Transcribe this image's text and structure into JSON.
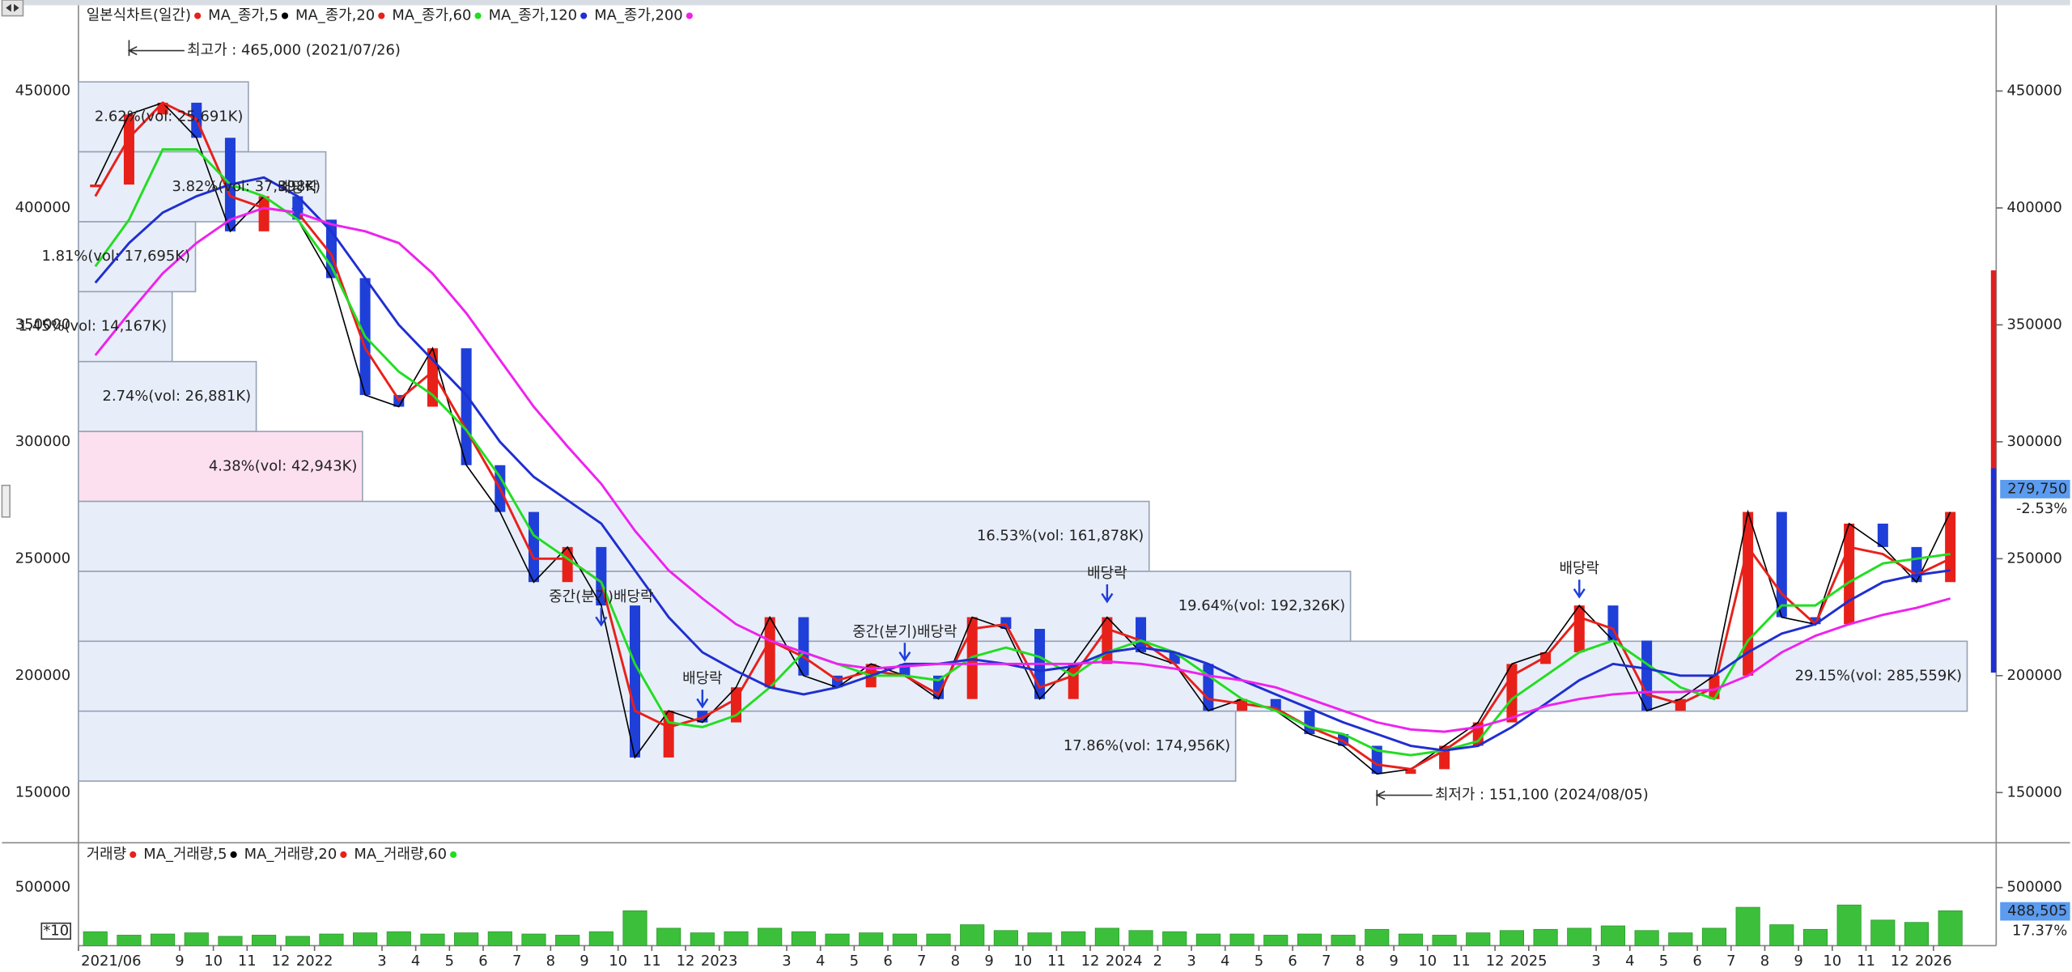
{
  "chart_data": [
    {
      "type": "candlestick",
      "x": [
        "2021-06",
        "2021-07",
        "2021-08",
        "2021-09",
        "2021-10",
        "2021-11",
        "2021-12",
        "2022-01",
        "2022-02",
        "2022-03",
        "2022-04",
        "2022-05",
        "2022-06",
        "2022-07",
        "2022-08",
        "2022-09",
        "2022-10",
        "2022-11",
        "2022-12",
        "2023-01",
        "2023-02",
        "2023-03",
        "2023-04",
        "2023-05",
        "2023-06",
        "2023-07",
        "2023-08",
        "2023-09",
        "2023-10",
        "2023-11",
        "2023-12",
        "2024-01",
        "2024-02",
        "2024-03",
        "2024-04",
        "2024-05",
        "2024-06",
        "2024-07",
        "2024-08",
        "2024-09",
        "2024-10",
        "2024-11",
        "2024-12",
        "2025-01",
        "2025-02",
        "2025-03",
        "2025-04",
        "2025-05",
        "2025-06",
        "2025-07",
        "2025-08",
        "2025-09",
        "2025-10",
        "2025-11",
        "2025-12",
        "2026-01"
      ],
      "xlim": [
        "2021-06",
        "2026-02"
      ],
      "xticks": [
        {
          "value": "2021-06",
          "label": "2021/06"
        },
        {
          "value": "2021-09",
          "label": "9"
        },
        {
          "value": "2021-10",
          "label": "10"
        },
        {
          "value": "2021-11",
          "label": "11"
        },
        {
          "value": "2021-12",
          "label": "12"
        },
        {
          "value": "2022-01",
          "label": "2022"
        },
        {
          "value": "2022-03",
          "label": "3"
        },
        {
          "value": "2022-04",
          "label": "4"
        },
        {
          "value": "2022-05",
          "label": "5"
        },
        {
          "value": "2022-06",
          "label": "6"
        },
        {
          "value": "2022-07",
          "label": "7"
        },
        {
          "value": "2022-08",
          "label": "8"
        },
        {
          "value": "2022-09",
          "label": "9"
        },
        {
          "value": "2022-10",
          "label": "10"
        },
        {
          "value": "2022-11",
          "label": "11"
        },
        {
          "value": "2022-12",
          "label": "12"
        },
        {
          "value": "2023-01",
          "label": "2023"
        },
        {
          "value": "2023-03",
          "label": "3"
        },
        {
          "value": "2023-04",
          "label": "4"
        },
        {
          "value": "2023-05",
          "label": "5"
        },
        {
          "value": "2023-06",
          "label": "6"
        },
        {
          "value": "2023-07",
          "label": "7"
        },
        {
          "value": "2023-08",
          "label": "8"
        },
        {
          "value": "2023-09",
          "label": "9"
        },
        {
          "value": "2023-10",
          "label": "10"
        },
        {
          "value": "2023-11",
          "label": "11"
        },
        {
          "value": "2023-12",
          "label": "12"
        },
        {
          "value": "2024-01",
          "label": "2024"
        },
        {
          "value": "2024-02",
          "label": "2"
        },
        {
          "value": "2024-03",
          "label": "3"
        },
        {
          "value": "2024-04",
          "label": "4"
        },
        {
          "value": "2024-05",
          "label": "5"
        },
        {
          "value": "2024-06",
          "label": "6"
        },
        {
          "value": "2024-07",
          "label": "7"
        },
        {
          "value": "2024-08",
          "label": "8"
        },
        {
          "value": "2024-09",
          "label": "9"
        },
        {
          "value": "2024-10",
          "label": "10"
        },
        {
          "value": "2024-11",
          "label": "11"
        },
        {
          "value": "2024-12",
          "label": "12"
        },
        {
          "value": "2025-01",
          "label": "2025"
        },
        {
          "value": "2025-03",
          "label": "3"
        },
        {
          "value": "2025-04",
          "label": "4"
        },
        {
          "value": "2025-05",
          "label": "5"
        },
        {
          "value": "2025-06",
          "label": "6"
        },
        {
          "value": "2025-07",
          "label": "7"
        },
        {
          "value": "2025-08",
          "label": "8"
        },
        {
          "value": "2025-09",
          "label": "9"
        },
        {
          "value": "2025-10",
          "label": "10"
        },
        {
          "value": "2025-11",
          "label": "11"
        },
        {
          "value": "2025-12",
          "label": "12"
        },
        {
          "value": "2026-01",
          "label": "2026"
        }
      ],
      "ylim": [
        129100,
        486100
      ],
      "yticks": [
        150000,
        200000,
        250000,
        300000,
        350000,
        400000,
        450000
      ],
      "series": [
        {
          "name": "일본식차트(일간)",
          "color": "#e8201a",
          "down_color": "#1f3fd9",
          "values": [
            410000,
            440000,
            445000,
            430000,
            390000,
            405000,
            395000,
            370000,
            320000,
            315000,
            340000,
            290000,
            270000,
            240000,
            255000,
            230000,
            165000,
            185000,
            180000,
            195000,
            225000,
            200000,
            195000,
            205000,
            200000,
            190000,
            225000,
            220000,
            190000,
            205000,
            225000,
            210000,
            205000,
            185000,
            190000,
            185000,
            175000,
            170000,
            158000,
            160000,
            170000,
            180000,
            205000,
            210000,
            230000,
            215000,
            185000,
            190000,
            200000,
            270000,
            225000,
            222000,
            265000,
            255000,
            240000,
            270000
          ]
        },
        {
          "name": "MA_종가,5",
          "color": "#000000",
          "values": [
            410000,
            440000,
            445000,
            430000,
            390000,
            405000,
            395000,
            370000,
            320000,
            315000,
            340000,
            290000,
            270000,
            240000,
            255000,
            230000,
            165000,
            185000,
            180000,
            195000,
            225000,
            200000,
            195000,
            205000,
            200000,
            190000,
            225000,
            220000,
            190000,
            205000,
            225000,
            210000,
            205000,
            185000,
            190000,
            185000,
            175000,
            170000,
            158000,
            160000,
            170000,
            180000,
            205000,
            210000,
            230000,
            215000,
            185000,
            190000,
            200000,
            270000,
            225000,
            222000,
            265000,
            255000,
            240000,
            270000
          ]
        },
        {
          "name": "MA_종가,20",
          "color": "#e8201a",
          "values": [
            405000,
            430000,
            445000,
            438000,
            405000,
            400000,
            398000,
            380000,
            340000,
            318000,
            330000,
            305000,
            280000,
            250000,
            250000,
            240000,
            185000,
            178000,
            182000,
            190000,
            215000,
            208000,
            198000,
            202000,
            200000,
            192000,
            220000,
            222000,
            195000,
            200000,
            220000,
            215000,
            205000,
            190000,
            188000,
            186000,
            178000,
            172000,
            162000,
            160000,
            168000,
            178000,
            200000,
            208000,
            225000,
            220000,
            192000,
            188000,
            195000,
            255000,
            235000,
            222000,
            255000,
            252000,
            243000,
            250000
          ]
        },
        {
          "name": "MA_종가,60",
          "color": "#22dd22",
          "values": [
            375000,
            395000,
            425000,
            425000,
            410000,
            405000,
            395000,
            375000,
            345000,
            330000,
            320000,
            305000,
            285000,
            260000,
            250000,
            240000,
            205000,
            180000,
            178000,
            183000,
            195000,
            210000,
            205000,
            200000,
            200000,
            198000,
            208000,
            212000,
            208000,
            200000,
            210000,
            215000,
            210000,
            200000,
            190000,
            185000,
            178000,
            175000,
            168000,
            166000,
            168000,
            172000,
            190000,
            200000,
            210000,
            215000,
            205000,
            195000,
            190000,
            215000,
            230000,
            230000,
            240000,
            248000,
            250000,
            252000
          ]
        },
        {
          "name": "MA_종가,120",
          "color": "#1f2fd0",
          "values": [
            368000,
            385000,
            398000,
            405000,
            410000,
            413000,
            405000,
            390000,
            370000,
            350000,
            335000,
            320000,
            300000,
            285000,
            275000,
            265000,
            245000,
            225000,
            210000,
            202000,
            195000,
            192000,
            195000,
            200000,
            205000,
            205000,
            207000,
            205000,
            202000,
            204000,
            210000,
            212000,
            210000,
            205000,
            198000,
            192000,
            186000,
            180000,
            175000,
            170000,
            168000,
            170000,
            178000,
            188000,
            198000,
            205000,
            203000,
            200000,
            200000,
            210000,
            218000,
            222000,
            232000,
            240000,
            243000,
            245000
          ]
        },
        {
          "name": "MA_종가,200",
          "color": "#ee22ee",
          "values": [
            337000,
            355000,
            372000,
            385000,
            395000,
            400000,
            398000,
            393000,
            390000,
            385000,
            372000,
            355000,
            335000,
            315000,
            298000,
            282000,
            262000,
            245000,
            233000,
            222000,
            215000,
            210000,
            205000,
            203000,
            204000,
            205000,
            205000,
            205000,
            205000,
            205000,
            206000,
            205000,
            203000,
            200000,
            198000,
            195000,
            190000,
            185000,
            180000,
            177000,
            176000,
            178000,
            182000,
            187000,
            190000,
            192000,
            193000,
            193000,
            194000,
            200000,
            210000,
            217000,
            222000,
            226000,
            229000,
            233000
          ]
        }
      ],
      "volume_profile": [
        {
          "low": 424000,
          "high": 453900,
          "volume": 25691,
          "label": "2.62%(vol: 25,691K)",
          "color": "#e8eef9"
        },
        {
          "low": 394100,
          "high": 424000,
          "volume": 37398,
          "label": "3.82%(vol: 37,398K)",
          "color": "#e8eef9"
        },
        {
          "low": 364200,
          "high": 394100,
          "volume": 17695,
          "label": "1.81%(vol: 17,695K)",
          "color": "#e8eef9"
        },
        {
          "low": 334300,
          "high": 364200,
          "volume": 14167,
          "label": "1.45%(vol: 14,167K)",
          "color": "#e8eef9"
        },
        {
          "low": 304400,
          "high": 334300,
          "volume": 26881,
          "label": "2.74%(vol: 26,881K)",
          "color": "#e8eef9"
        },
        {
          "low": 274500,
          "high": 304400,
          "volume": 42943,
          "label": "4.38%(vol: 42,943K)",
          "color": "#fde0f0"
        },
        {
          "low": 244600,
          "high": 274500,
          "volume": 161878,
          "label": "16.53%(vol: 161,878K)",
          "color": "#e8eef9"
        },
        {
          "low": 214700,
          "high": 244600,
          "volume": 192326,
          "label": "19.64%(vol: 192,326K)",
          "color": "#e8eef9"
        },
        {
          "low": 184800,
          "high": 214700,
          "volume": 285559,
          "label": "29.15%(vol: 285,559K)",
          "color": "#e8eef9"
        },
        {
          "low": 154900,
          "high": 184800,
          "volume": 174956,
          "label": "17.86%(vol: 174,956K)",
          "color": "#e8eef9"
        }
      ],
      "annotations": [
        {
          "kind": "high",
          "text": "최고가 : 465,000 (2021/07/26)",
          "x": "2021-07",
          "y": 465000,
          "color": "#e8201a"
        },
        {
          "kind": "low",
          "text": "최저가 : 151,100 (2024/08/05)",
          "x": "2024-08",
          "y": 151100,
          "color": "#1f3fd9"
        },
        {
          "kind": "dividend",
          "text": "배당락",
          "x": "2021-12",
          "y": 395000,
          "color": "#1f3fd9"
        },
        {
          "kind": "dividend",
          "text": "중간(분기)배당락",
          "x": "2022-09",
          "y": 220000,
          "color": "#1f3fd9"
        },
        {
          "kind": "dividend",
          "text": "배당락",
          "x": "2022-12",
          "y": 185000,
          "color": "#1f3fd9"
        },
        {
          "kind": "dividend",
          "text": "중간(분기)배당락",
          "x": "2023-06",
          "y": 205000,
          "color": "#1f3fd9"
        },
        {
          "kind": "dividend",
          "text": "배당락",
          "x": "2023-12",
          "y": 230000,
          "color": "#1f3fd9"
        },
        {
          "kind": "dividend",
          "text": "배당락",
          "x": "2025-02",
          "y": 232000,
          "color": "#1f3fd9"
        }
      ],
      "last_value": 279750,
      "last_value_label": "279,750",
      "last_change_label": "-2.53%"
    },
    {
      "type": "bar",
      "series": [
        {
          "name": "거래량",
          "color": "#e8201a",
          "bar_color": "#3cc03c",
          "values": [
            120000,
            90000,
            100000,
            110000,
            80000,
            90000,
            80000,
            100000,
            110000,
            120000,
            100000,
            110000,
            120000,
            100000,
            90000,
            120000,
            300000,
            150000,
            110000,
            120000,
            150000,
            120000,
            100000,
            110000,
            100000,
            100000,
            180000,
            130000,
            110000,
            120000,
            150000,
            130000,
            120000,
            100000,
            100000,
            90000,
            100000,
            90000,
            140000,
            100000,
            90000,
            110000,
            130000,
            140000,
            150000,
            170000,
            130000,
            110000,
            150000,
            330000,
            180000,
            140000,
            350000,
            220000,
            200000,
            300000
          ]
        }
      ],
      "legend_items": [
        {
          "name": "MA_거래량,5",
          "color": "#000000"
        },
        {
          "name": "MA_거래량,20",
          "color": "#e8201a"
        },
        {
          "name": "MA_거래량,60",
          "color": "#22dd22"
        }
      ],
      "ylim": [
        0,
        863600
      ],
      "yticks": [
        500000
      ],
      "unit_label": "*10",
      "last_value": 488505,
      "last_value_label": "488,505",
      "last_change_label": "17.37%"
    }
  ]
}
